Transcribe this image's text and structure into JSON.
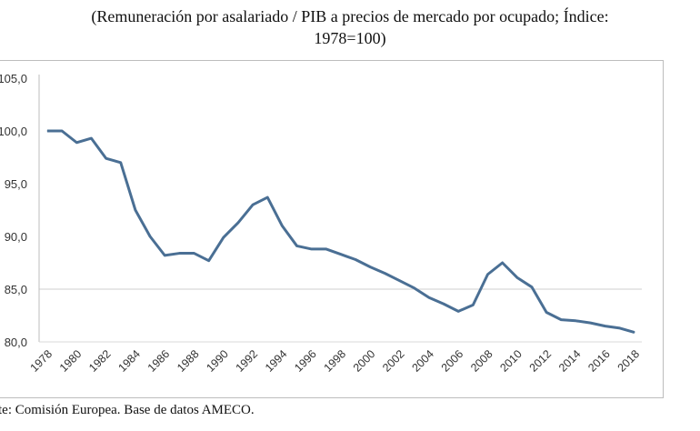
{
  "chart_data": {
    "type": "line",
    "title_line1": "(Remuneración por asalariado / PIB a precios de mercado por ocupado; Índice:",
    "title_line2": "1978=100)",
    "source": "Fuente: Comisión Europea. Base de datos AMECO.",
    "xlabel": "",
    "ylabel": "",
    "ylim": [
      80,
      105
    ],
    "yticks": [
      "80,0",
      "85,0",
      "90,0",
      "95,0",
      "100,0",
      "105,0"
    ],
    "ytick_values": [
      80,
      85,
      90,
      95,
      100,
      105
    ],
    "xlim": [
      1978,
      2018
    ],
    "xticks": [
      "1978",
      "1980",
      "1982",
      "1984",
      "1986",
      "1988",
      "1990",
      "1992",
      "1994",
      "1996",
      "1998",
      "2000",
      "2002",
      "2004",
      "2006",
      "2008",
      "2010",
      "2012",
      "2014",
      "2016",
      "2018"
    ],
    "grid": "horizontal at 85",
    "series": [
      {
        "name": "Índice",
        "color": "#4a6f94",
        "x": [
          1978,
          1979,
          1980,
          1981,
          1982,
          1983,
          1984,
          1985,
          1986,
          1987,
          1988,
          1989,
          1990,
          1991,
          1992,
          1993,
          1994,
          1995,
          1996,
          1997,
          1998,
          1999,
          2000,
          2001,
          2002,
          2003,
          2004,
          2005,
          2006,
          2007,
          2008,
          2009,
          2010,
          2011,
          2012,
          2013,
          2014,
          2015,
          2016,
          2017,
          2018
        ],
        "values": [
          100.0,
          100.0,
          98.9,
          99.3,
          97.4,
          97.0,
          92.5,
          90.0,
          88.2,
          88.4,
          88.4,
          87.7,
          89.9,
          91.3,
          93.0,
          93.7,
          91.0,
          89.1,
          88.8,
          88.8,
          88.3,
          87.8,
          87.1,
          86.5,
          85.8,
          85.1,
          84.2,
          83.6,
          82.9,
          83.5,
          86.4,
          87.5,
          86.1,
          85.2,
          82.8,
          82.1,
          82.0,
          81.8,
          81.5,
          81.3,
          80.9
        ]
      }
    ]
  }
}
